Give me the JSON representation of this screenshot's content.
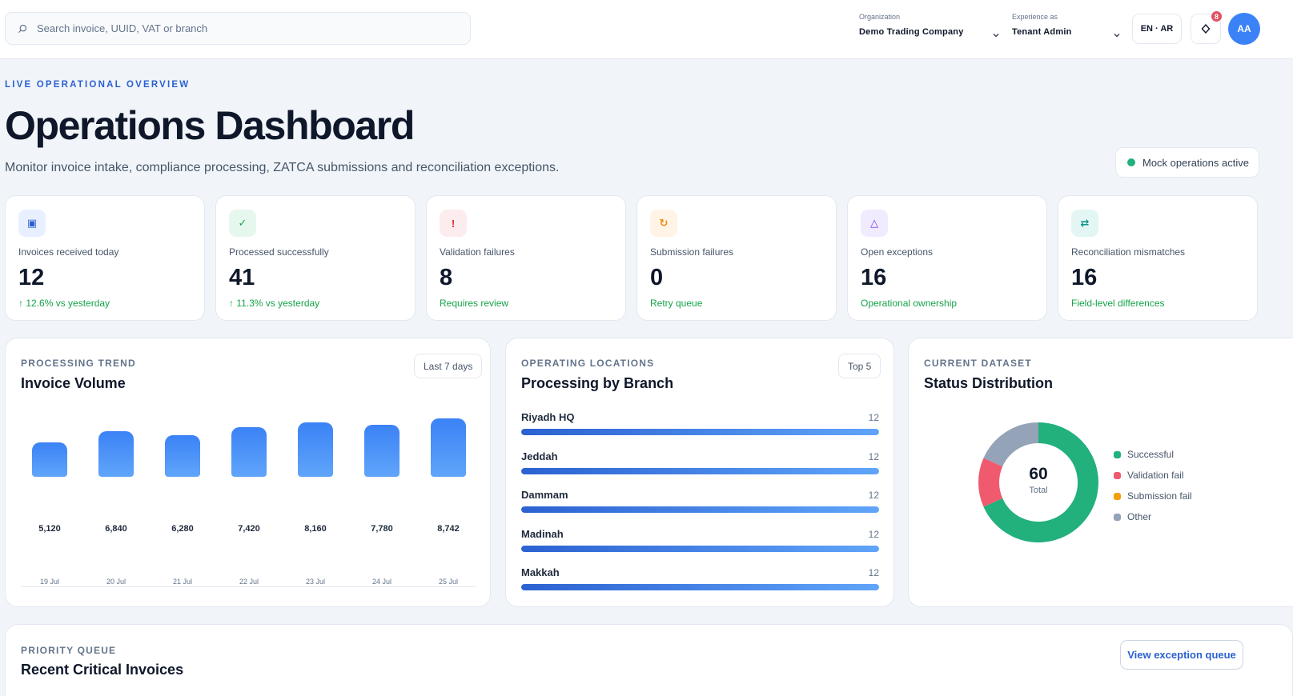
{
  "search": {
    "placeholder": "Search invoice, UUID, VAT or branch"
  },
  "organization": {
    "label": "Organization",
    "value": "Demo Trading Company"
  },
  "experience": {
    "label": "Experience as",
    "value": "Tenant Admin"
  },
  "language": {
    "label": "EN · AR"
  },
  "notifications": {
    "count": "8"
  },
  "user": {
    "initials": "AA"
  },
  "header": {
    "eyebrow": "LIVE OPERATIONAL OVERVIEW",
    "title": "Operations Dashboard",
    "subtitle": "Monitor invoice intake, compliance processing, ZATCA submissions and reconciliation exceptions.",
    "status": "Mock operations active"
  },
  "kpis": [
    {
      "icon": "invoice-icon",
      "glyph": "▣",
      "label": "Invoices received today",
      "value": "12",
      "note": "↑ 12.6% vs yesterday",
      "color": "#2b61d1",
      "bg": "#e8efff"
    },
    {
      "icon": "check-icon",
      "glyph": "✓",
      "label": "Processed successfully",
      "value": "41",
      "note": "↑ 11.3% vs yesterday",
      "color": "#16a34a",
      "bg": "#e6f7ee"
    },
    {
      "icon": "alert-icon",
      "glyph": "!",
      "label": "Validation failures",
      "value": "8",
      "note": "Requires review",
      "color": "#dc2626",
      "bg": "#fdecee"
    },
    {
      "icon": "retry-icon",
      "glyph": "↻",
      "label": "Submission failures",
      "value": "0",
      "note": "Retry queue",
      "color": "#ea8a0c",
      "bg": "#fff4e5"
    },
    {
      "icon": "warning-triangle-icon",
      "glyph": "△",
      "label": "Open exceptions",
      "value": "16",
      "note": "Operational ownership",
      "color": "#7c3aed",
      "bg": "#f1ebff"
    },
    {
      "icon": "swap-icon",
      "glyph": "⇄",
      "label": "Reconciliation mismatches",
      "value": "16",
      "note": "Field-level differences",
      "color": "#0d9488",
      "bg": "#e3f6f4"
    }
  ],
  "volume": {
    "eyebrow": "PROCESSING TREND",
    "title": "Invoice Volume",
    "range_button": "Last 7 days"
  },
  "branches": {
    "eyebrow": "OPERATING LOCATIONS",
    "title": "Processing by Branch",
    "filter_button": "Top 5",
    "items": [
      {
        "name": "Riyadh HQ",
        "value": 12,
        "label": "12"
      },
      {
        "name": "Jeddah",
        "value": 12,
        "label": "12"
      },
      {
        "name": "Dammam",
        "value": 12,
        "label": "12"
      },
      {
        "name": "Madinah",
        "value": 12,
        "label": "12"
      },
      {
        "name": "Makkah",
        "value": 12,
        "label": "12"
      }
    ],
    "max": 12
  },
  "status_dist": {
    "eyebrow": "CURRENT DATASET",
    "title": "Status Distribution",
    "center_value": "60",
    "center_label": "Total"
  },
  "chart_data": [
    {
      "type": "bar",
      "categories": [
        "19 Jul",
        "20 Jul",
        "21 Jul",
        "22 Jul",
        "23 Jul",
        "24 Jul",
        "25 Jul"
      ],
      "values": [
        5120,
        6840,
        6280,
        7420,
        8160,
        7780,
        8742
      ],
      "value_labels": [
        "5,120",
        "6,840",
        "6,280",
        "7,420",
        "8,160",
        "7,780",
        "8,742"
      ],
      "color": "#3b82f6"
    },
    {
      "type": "pie",
      "labels": [
        "Successful",
        "Validation fail",
        "Submission fail",
        "Other"
      ],
      "values": [
        41,
        8,
        0,
        11
      ],
      "colors": [
        "#22b07d",
        "#ef5a6f",
        "#f59e0b",
        "#94a3b8"
      ]
    }
  ],
  "priority": {
    "eyebrow": "PRIORITY QUEUE",
    "title": "Recent Critical Invoices",
    "button": "View exception queue"
  }
}
